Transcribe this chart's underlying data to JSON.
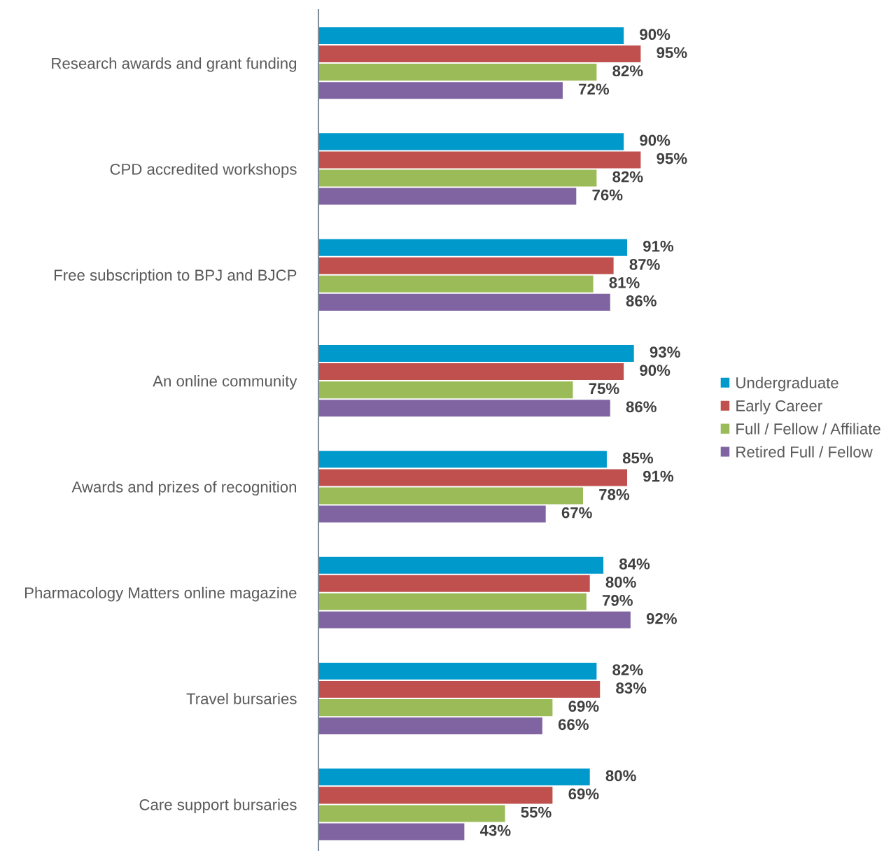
{
  "chart_data": {
    "type": "bar",
    "orientation": "horizontal",
    "categories": [
      "Research awards and grant funding",
      "CPD accredited workshops",
      "Free subscription to BPJ and BJCP",
      "An online community",
      "Awards and prizes of recognition",
      "Pharmacology Matters online magazine",
      "Travel bursaries",
      "Care support bursaries"
    ],
    "series": [
      {
        "name": "Undergraduate",
        "color": "#0099cc",
        "values": [
          90,
          90,
          91,
          93,
          85,
          84,
          82,
          80
        ],
        "value_labels": [
          "90%",
          "90%",
          "91%",
          "93%",
          "85%",
          "84%",
          "82%",
          "80%"
        ]
      },
      {
        "name": "Early Career",
        "color": "#c0504d",
        "values": [
          95,
          95,
          87,
          90,
          91,
          80,
          83,
          69
        ],
        "value_labels": [
          "95%",
          "95%",
          "87%",
          "90%",
          "91%",
          "80%",
          "83%",
          "69%"
        ]
      },
      {
        "name": "Full / Fellow / Affiliate",
        "color": "#9bbb59",
        "values": [
          82,
          82,
          81,
          75,
          78,
          79,
          69,
          55
        ],
        "value_labels": [
          "82%",
          "82%",
          "81%",
          "75%",
          "78%",
          "79%",
          "69%",
          "55%"
        ]
      },
      {
        "name": "Retired Full / Fellow",
        "color": "#8064a2",
        "values": [
          72,
          76,
          86,
          86,
          67,
          92,
          66,
          43
        ],
        "value_labels": [
          "72%",
          "76%",
          "86%",
          "86%",
          "67%",
          "92%",
          "66%",
          "43%"
        ]
      }
    ],
    "legend": "right",
    "grid": false
  }
}
